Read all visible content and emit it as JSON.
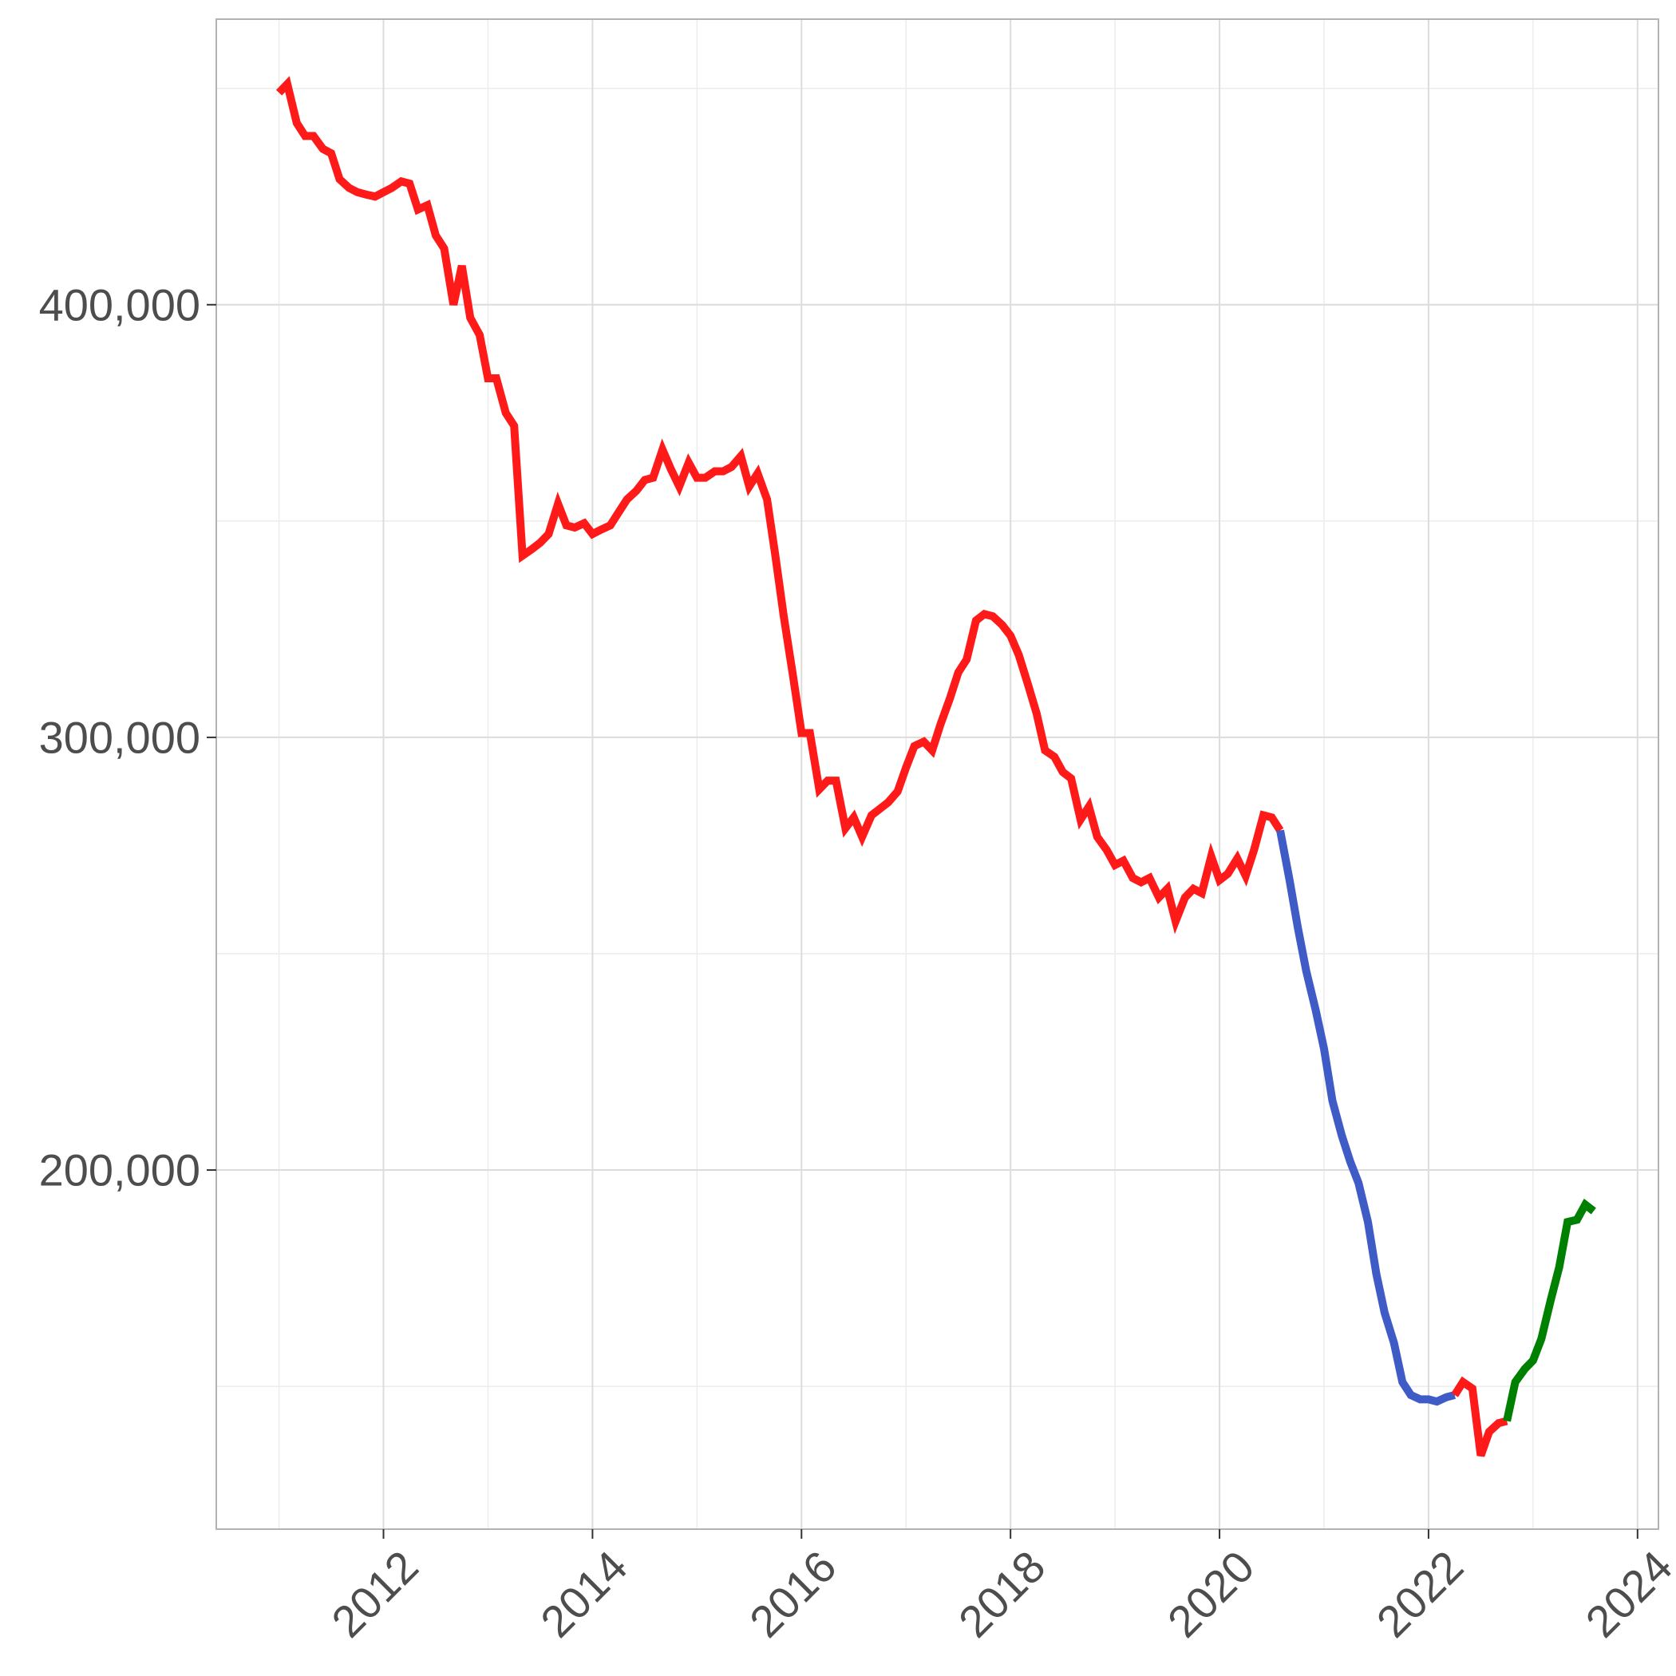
{
  "chart_data": {
    "type": "line",
    "title": "",
    "xlabel": "",
    "ylabel": "",
    "xlim": [
      2010.4,
      2024.2
    ],
    "ylim": [
      117000,
      466000
    ],
    "x_ticks": [
      2012,
      2014,
      2016,
      2018,
      2020,
      2022,
      2024
    ],
    "x_tick_labels": [
      "2012",
      "2014",
      "2016",
      "2018",
      "2020",
      "2022",
      "2024"
    ],
    "y_ticks": [
      200000,
      300000,
      400000
    ],
    "y_tick_labels": [
      "200,000",
      "300,000",
      "400,000"
    ],
    "grid": true,
    "legend": "none",
    "segment_colors": {
      "red": "#ff1a1a",
      "blue": "#3f5bc6",
      "green": "#008000"
    },
    "series": [
      {
        "color": "#ff1a1a",
        "points": [
          [
            2011.0,
            449000
          ],
          [
            2011.08,
            451000
          ],
          [
            2011.17,
            442000
          ],
          [
            2011.25,
            439000
          ],
          [
            2011.33,
            439000
          ],
          [
            2011.42,
            436000
          ],
          [
            2011.5,
            435000
          ],
          [
            2011.58,
            429000
          ],
          [
            2011.67,
            427000
          ],
          [
            2011.75,
            426000
          ],
          [
            2011.83,
            425500
          ],
          [
            2011.92,
            425000
          ],
          [
            2012.0,
            426000
          ],
          [
            2012.08,
            427000
          ],
          [
            2012.17,
            428500
          ],
          [
            2012.25,
            428000
          ],
          [
            2012.33,
            422000
          ],
          [
            2012.42,
            423000
          ],
          [
            2012.5,
            416000
          ],
          [
            2012.58,
            413000
          ],
          [
            2012.67,
            400000
          ],
          [
            2012.75,
            409000
          ],
          [
            2012.83,
            397000
          ],
          [
            2012.92,
            393000
          ],
          [
            2013.0,
            383000
          ],
          [
            2013.08,
            383000
          ],
          [
            2013.17,
            375000
          ],
          [
            2013.25,
            372000
          ],
          [
            2013.33,
            342000
          ],
          [
            2013.42,
            343500
          ],
          [
            2013.5,
            345000
          ],
          [
            2013.58,
            347000
          ],
          [
            2013.67,
            354000
          ],
          [
            2013.75,
            349000
          ],
          [
            2013.83,
            348500
          ],
          [
            2013.92,
            349500
          ],
          [
            2014.0,
            347000
          ],
          [
            2014.08,
            348000
          ],
          [
            2014.17,
            349000
          ],
          [
            2014.25,
            352000
          ],
          [
            2014.33,
            355000
          ],
          [
            2014.42,
            357000
          ],
          [
            2014.5,
            359500
          ],
          [
            2014.58,
            360000
          ],
          [
            2014.67,
            366500
          ],
          [
            2014.75,
            362000
          ],
          [
            2014.83,
            358000
          ],
          [
            2014.92,
            363500
          ],
          [
            2015.0,
            360000
          ],
          [
            2015.08,
            360000
          ],
          [
            2015.17,
            361500
          ],
          [
            2015.25,
            361500
          ],
          [
            2015.33,
            362500
          ],
          [
            2015.42,
            365000
          ],
          [
            2015.5,
            358000
          ],
          [
            2015.58,
            361000
          ],
          [
            2015.67,
            355000
          ],
          [
            2015.75,
            342000
          ],
          [
            2015.83,
            328000
          ],
          [
            2015.92,
            314000
          ],
          [
            2016.0,
            301000
          ],
          [
            2016.08,
            301000
          ],
          [
            2016.17,
            288000
          ],
          [
            2016.25,
            290000
          ],
          [
            2016.33,
            290000
          ],
          [
            2016.42,
            279000
          ],
          [
            2016.5,
            281500
          ],
          [
            2016.58,
            277000
          ],
          [
            2016.67,
            282000
          ],
          [
            2016.75,
            283500
          ],
          [
            2016.83,
            285000
          ],
          [
            2016.92,
            287500
          ],
          [
            2017.0,
            293000
          ],
          [
            2017.08,
            298000
          ],
          [
            2017.17,
            299000
          ],
          [
            2017.25,
            297000
          ],
          [
            2017.33,
            303000
          ],
          [
            2017.42,
            309000
          ],
          [
            2017.5,
            315000
          ],
          [
            2017.58,
            318000
          ],
          [
            2017.67,
            327000
          ],
          [
            2017.75,
            328500
          ],
          [
            2017.83,
            328000
          ],
          [
            2017.92,
            326000
          ],
          [
            2018.0,
            323500
          ],
          [
            2018.08,
            319000
          ],
          [
            2018.17,
            312000
          ],
          [
            2018.25,
            305500
          ],
          [
            2018.33,
            297000
          ],
          [
            2018.42,
            295500
          ],
          [
            2018.5,
            292000
          ],
          [
            2018.58,
            290500
          ],
          [
            2018.67,
            281000
          ],
          [
            2018.75,
            284000
          ],
          [
            2018.83,
            277000
          ],
          [
            2018.92,
            274000
          ],
          [
            2019.0,
            270500
          ],
          [
            2019.08,
            271500
          ],
          [
            2019.17,
            267500
          ],
          [
            2019.25,
            266500
          ],
          [
            2019.33,
            267500
          ],
          [
            2019.42,
            263000
          ],
          [
            2019.5,
            265000
          ],
          [
            2019.58,
            257500
          ],
          [
            2019.67,
            263000
          ],
          [
            2019.75,
            265000
          ],
          [
            2019.83,
            264000
          ],
          [
            2019.92,
            272500
          ],
          [
            2020.0,
            267000
          ],
          [
            2020.08,
            268500
          ],
          [
            2020.17,
            272000
          ],
          [
            2020.25,
            268000
          ],
          [
            2020.33,
            274000
          ],
          [
            2020.42,
            282000
          ],
          [
            2020.5,
            281500
          ],
          [
            2020.58,
            278500
          ]
        ]
      },
      {
        "color": "#3f5bc6",
        "points": [
          [
            2020.58,
            278500
          ],
          [
            2020.67,
            267000
          ],
          [
            2020.75,
            256000
          ],
          [
            2020.83,
            246000
          ],
          [
            2020.92,
            237000
          ],
          [
            2021.0,
            228000
          ],
          [
            2021.08,
            216000
          ],
          [
            2021.17,
            208000
          ],
          [
            2021.25,
            202000
          ],
          [
            2021.33,
            197000
          ],
          [
            2021.42,
            188000
          ],
          [
            2021.5,
            176000
          ],
          [
            2021.58,
            167000
          ],
          [
            2021.67,
            160000
          ],
          [
            2021.75,
            151000
          ],
          [
            2021.83,
            148000
          ],
          [
            2021.92,
            147000
          ],
          [
            2022.0,
            147000
          ],
          [
            2022.08,
            146500
          ],
          [
            2022.17,
            147500
          ],
          [
            2022.25,
            148000
          ]
        ]
      },
      {
        "color": "#ff1a1a",
        "points": [
          [
            2022.25,
            148000
          ],
          [
            2022.33,
            151000
          ],
          [
            2022.42,
            149500
          ],
          [
            2022.5,
            134000
          ],
          [
            2022.58,
            139500
          ],
          [
            2022.67,
            141500
          ],
          [
            2022.75,
            142000
          ]
        ]
      },
      {
        "color": "#008000",
        "points": [
          [
            2022.75,
            142000
          ],
          [
            2022.83,
            151000
          ],
          [
            2022.92,
            154000
          ],
          [
            2023.0,
            156000
          ],
          [
            2023.08,
            161000
          ],
          [
            2023.17,
            170000
          ],
          [
            2023.25,
            177500
          ],
          [
            2023.33,
            188000
          ],
          [
            2023.42,
            188500
          ],
          [
            2023.5,
            192000
          ],
          [
            2023.58,
            190500
          ]
        ]
      }
    ]
  }
}
